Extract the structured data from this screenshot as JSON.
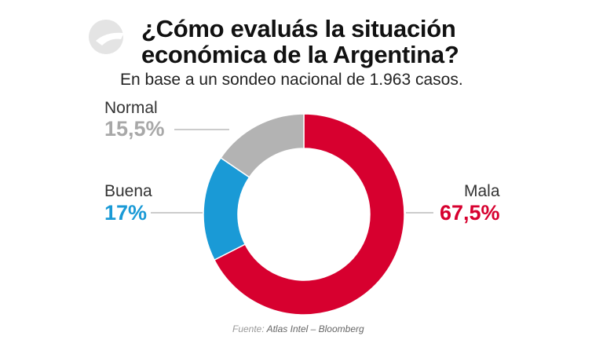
{
  "chart_data": {
    "type": "pie",
    "variant": "donut",
    "title": "¿Cómo evaluás la situación económica de la Argentina?",
    "title_lines": [
      "¿Cómo evaluás la situación",
      "económica de la Argentina?"
    ],
    "subtitle": "En base a un sondeo nacional de 1.963 casos.",
    "slices": [
      {
        "label": "Mala",
        "value": 67.5,
        "display": "67,5%",
        "color": "#d7002f"
      },
      {
        "label": "Buena",
        "value": 17,
        "display": "17%",
        "color": "#1a9ad6"
      },
      {
        "label": "Normal",
        "value": 15.5,
        "display": "15,5%",
        "color": "#b3b3b3"
      }
    ],
    "source_prefix": "Fuente:",
    "source": "Atlas Intel – Bloomberg"
  }
}
